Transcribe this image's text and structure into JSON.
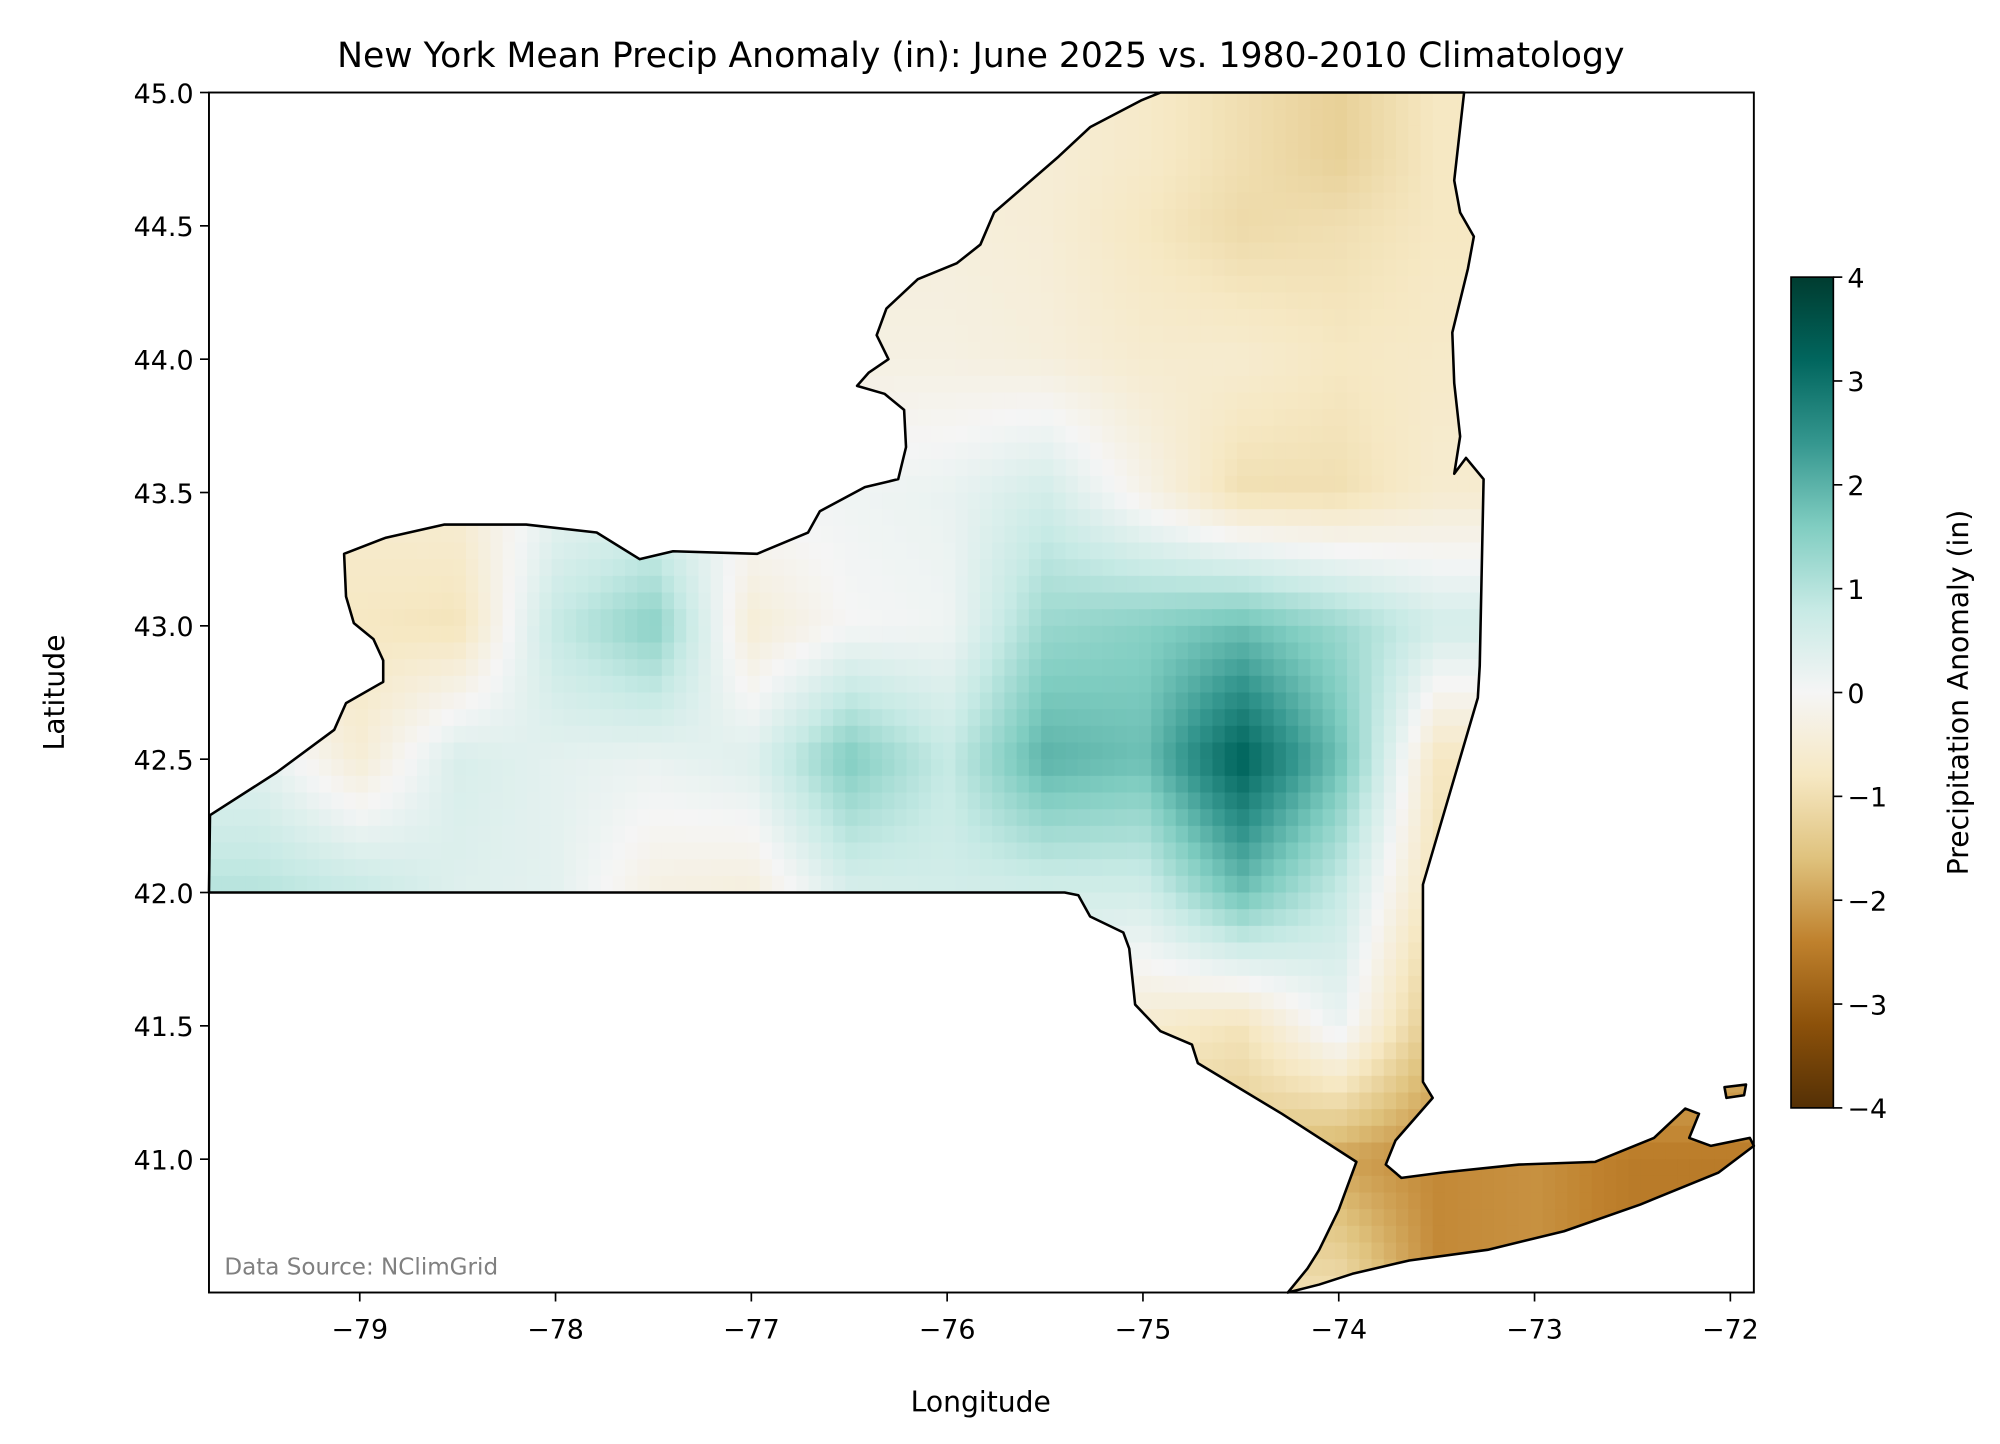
{
  "chart_data": {
    "type": "heatmap",
    "title": "New York Mean Precip Anomaly (in): June 2025 vs. 1980-2010 Climatology",
    "xlabel": "Longitude",
    "ylabel": "Latitude",
    "xlim": [
      -79.77,
      -71.88
    ],
    "ylim": [
      40.5,
      45.0
    ],
    "xticks": [
      -79,
      -78,
      -77,
      -76,
      -75,
      -74,
      -73,
      -72
    ],
    "xtick_labels": [
      "−79",
      "−78",
      "−77",
      "−76",
      "−75",
      "−74",
      "−73",
      "−72"
    ],
    "yticks": [
      41.0,
      41.5,
      42.0,
      42.5,
      43.0,
      43.5,
      44.0,
      44.5,
      45.0
    ],
    "ytick_labels": [
      "41.0",
      "41.5",
      "42.0",
      "42.5",
      "43.0",
      "43.5",
      "44.0",
      "44.5",
      "45.0"
    ],
    "grid": false,
    "annotation": "Data Source: NClimGrid",
    "colorbar": {
      "label": "Precipitation Anomaly (in)",
      "colormap": "BrBG",
      "range": [
        -4,
        4
      ],
      "ticks": [
        -4,
        -3,
        -2,
        -1,
        0,
        1,
        2,
        3,
        4
      ],
      "tick_labels": [
        "−4",
        "−3",
        "−2",
        "−1",
        "0",
        "1",
        "2",
        "3",
        "4"
      ],
      "colors": [
        "#543005",
        "#8c510a",
        "#bf812d",
        "#dfc27d",
        "#f6e8c3",
        "#f5f5f5",
        "#c7eae5",
        "#80cdc1",
        "#35978f",
        "#01665e",
        "#003c30"
      ]
    },
    "grid_lon": [
      -79.5,
      -79.0,
      -78.5,
      -78.0,
      -77.5,
      -77.0,
      -76.5,
      -76.0,
      -75.5,
      -75.0,
      -74.5,
      -74.0,
      -73.5,
      -73.0,
      -72.5,
      -72.0
    ],
    "grid_lat": [
      44.75,
      44.5,
      44.0,
      43.5,
      43.0,
      42.5,
      42.0,
      41.5,
      41.0,
      40.5
    ],
    "anomaly_in": [
      [
        -0.5,
        -0.5,
        -0.5,
        -0.5,
        -0.5,
        -0.5,
        -0.5,
        -0.5,
        -0.5,
        -0.7,
        -1.0,
        -1.3,
        -0.8,
        -0.8,
        -0.8,
        -0.8
      ],
      [
        -0.4,
        -0.4,
        -0.4,
        -0.4,
        -0.4,
        -0.4,
        -0.4,
        -0.4,
        -0.5,
        -0.8,
        -1.1,
        -1.0,
        -0.8,
        -0.8,
        -0.8,
        -0.8
      ],
      [
        -0.3,
        -0.3,
        -0.3,
        -0.3,
        -0.3,
        -0.3,
        -0.3,
        -0.3,
        -0.4,
        -0.6,
        -0.6,
        -0.8,
        -0.7,
        -0.7,
        -0.7,
        -0.7
      ],
      [
        -0.6,
        -0.6,
        -0.5,
        0.2,
        0.3,
        0.1,
        0.1,
        0.2,
        0.6,
        -0.2,
        -1.0,
        -1.0,
        -0.6,
        -0.6,
        -0.6,
        -0.6
      ],
      [
        -0.8,
        -0.8,
        -0.9,
        0.8,
        1.5,
        -0.5,
        0.0,
        0.1,
        1.3,
        1.5,
        1.8,
        1.3,
        0.6,
        0.6,
        0.6,
        0.6
      ],
      [
        0.3,
        -0.5,
        0.5,
        0.3,
        0.2,
        0.4,
        1.6,
        0.8,
        2.0,
        1.8,
        3.3,
        1.8,
        -0.8,
        -0.8,
        -0.8,
        -0.8
      ],
      [
        1.0,
        0.8,
        0.4,
        0.3,
        -0.3,
        -0.4,
        0.5,
        0.6,
        0.6,
        0.6,
        1.8,
        0.8,
        -1.0,
        -1.0,
        -1.0,
        -1.0
      ],
      [
        0,
        0,
        0,
        0,
        0,
        0,
        0,
        0,
        0,
        -0.6,
        -0.9,
        0.2,
        -1.6,
        -1.6,
        -1.6,
        -1.6
      ],
      [
        -1.5,
        -1.5,
        -1.5,
        -1.5,
        -1.5,
        -1.5,
        -1.5,
        -1.5,
        -1.5,
        -1.5,
        -1.5,
        -2.0,
        -2.3,
        -2.2,
        -2.5,
        -2.5
      ],
      [
        -1.0,
        -1.0,
        -1.0,
        -1.0,
        -1.0,
        -1.0,
        -1.0,
        -1.0,
        -1.0,
        -1.0,
        -1.0,
        -1.0,
        -2.3,
        -2.2,
        -2.5,
        -2.5
      ]
    ],
    "state_outline": [
      [
        -79.765,
        42.29
      ],
      [
        -79.425,
        42.45
      ],
      [
        -79.13,
        42.61
      ],
      [
        -79.07,
        42.71
      ],
      [
        -78.88,
        42.79
      ],
      [
        -78.88,
        42.87
      ],
      [
        -78.93,
        42.95
      ],
      [
        -79.03,
        43.01
      ],
      [
        -79.07,
        43.11
      ],
      [
        -79.08,
        43.27
      ],
      [
        -78.87,
        43.33
      ],
      [
        -78.57,
        43.38
      ],
      [
        -78.15,
        43.38
      ],
      [
        -77.79,
        43.35
      ],
      [
        -77.57,
        43.25
      ],
      [
        -77.4,
        43.28
      ],
      [
        -76.97,
        43.27
      ],
      [
        -76.71,
        43.35
      ],
      [
        -76.65,
        43.43
      ],
      [
        -76.42,
        43.52
      ],
      [
        -76.25,
        43.55
      ],
      [
        -76.21,
        43.67
      ],
      [
        -76.22,
        43.81
      ],
      [
        -76.32,
        43.87
      ],
      [
        -76.46,
        43.9
      ],
      [
        -76.4,
        43.95
      ],
      [
        -76.3,
        44.0
      ],
      [
        -76.36,
        44.09
      ],
      [
        -76.31,
        44.19
      ],
      [
        -76.15,
        44.3
      ],
      [
        -75.95,
        44.36
      ],
      [
        -75.83,
        44.43
      ],
      [
        -75.76,
        44.55
      ],
      [
        -75.43,
        44.76
      ],
      [
        -75.27,
        44.87
      ],
      [
        -75.01,
        44.97
      ],
      [
        -74.91,
        45.0
      ],
      [
        -73.36,
        45.0
      ],
      [
        -73.41,
        44.67
      ],
      [
        -73.38,
        44.55
      ],
      [
        -73.31,
        44.46
      ],
      [
        -73.34,
        44.34
      ],
      [
        -73.42,
        44.1
      ],
      [
        -73.41,
        43.91
      ],
      [
        -73.38,
        43.71
      ],
      [
        -73.41,
        43.57
      ],
      [
        -73.35,
        43.63
      ],
      [
        -73.26,
        43.55
      ],
      [
        -73.28,
        42.85
      ],
      [
        -73.29,
        42.73
      ],
      [
        -73.57,
        42.03
      ],
      [
        -73.57,
        41.29
      ],
      [
        -73.52,
        41.23
      ],
      [
        -73.71,
        41.07
      ],
      [
        -73.76,
        40.98
      ],
      [
        -73.68,
        40.93
      ],
      [
        -73.47,
        40.95
      ],
      [
        -73.08,
        40.98
      ],
      [
        -72.69,
        40.99
      ],
      [
        -72.39,
        41.08
      ],
      [
        -72.23,
        41.19
      ],
      [
        -72.16,
        41.17
      ],
      [
        -72.21,
        41.08
      ],
      [
        -72.1,
        41.05
      ],
      [
        -71.9,
        41.08
      ],
      [
        -71.88,
        41.05
      ],
      [
        -72.06,
        40.95
      ],
      [
        -72.46,
        40.83
      ],
      [
        -72.85,
        40.73
      ],
      [
        -73.24,
        40.66
      ],
      [
        -73.64,
        40.62
      ],
      [
        -73.93,
        40.57
      ],
      [
        -74.1,
        40.53
      ],
      [
        -74.26,
        40.5
      ],
      [
        -74.16,
        40.59
      ],
      [
        -74.1,
        40.66
      ],
      [
        -74.0,
        40.81
      ],
      [
        -73.91,
        40.99
      ],
      [
        -74.29,
        41.17
      ],
      [
        -74.72,
        41.36
      ],
      [
        -74.75,
        41.43
      ],
      [
        -74.91,
        41.48
      ],
      [
        -75.04,
        41.58
      ],
      [
        -75.07,
        41.79
      ],
      [
        -75.1,
        41.85
      ],
      [
        -75.27,
        41.91
      ],
      [
        -75.33,
        41.99
      ],
      [
        -75.4,
        42.0
      ],
      [
        -79.77,
        42.0
      ]
    ],
    "island_outline": [
      [
        -72.03,
        41.27
      ],
      [
        -71.92,
        41.28
      ],
      [
        -71.93,
        41.24
      ],
      [
        -72.02,
        41.23
      ]
    ]
  }
}
